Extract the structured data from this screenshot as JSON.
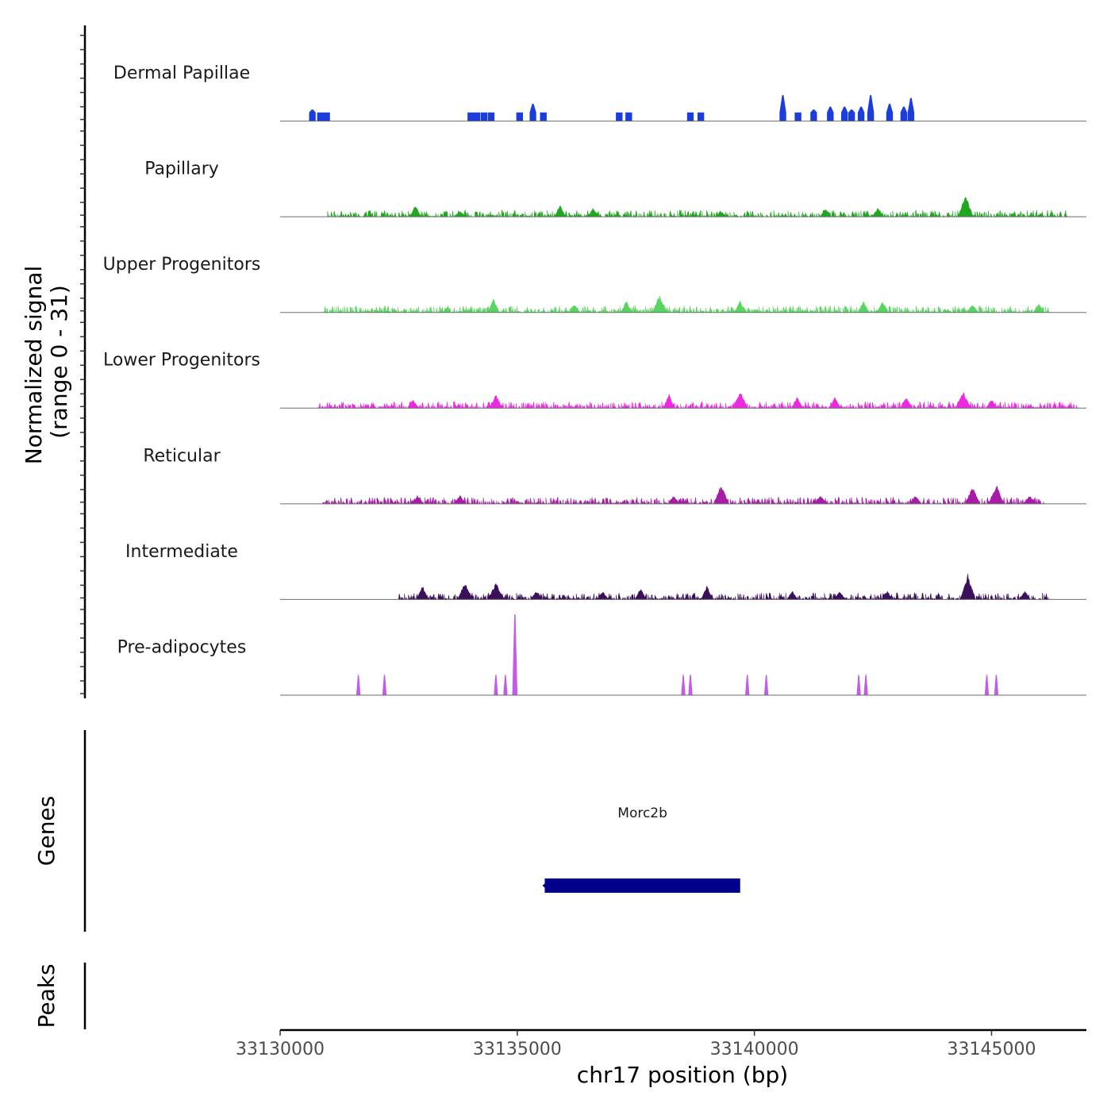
{
  "chart_data": {
    "type": "area",
    "region": {
      "chrom": "chr17",
      "start": 33130000,
      "end": 33147000
    },
    "xlabel": "chr17 position (bp)",
    "xticks": [
      {
        "value": 33130000,
        "label": "33130000"
      },
      {
        "value": 33135000,
        "label": "33135000"
      },
      {
        "value": 33140000,
        "label": "33140000"
      },
      {
        "value": 33145000,
        "label": "33145000"
      }
    ],
    "coverage_ylabel_line1": "Normalized signal",
    "coverage_ylabel_line2": "(range 0 - 31)",
    "ylim": [
      0,
      31
    ],
    "tracks": [
      {
        "name": "Dermal Papillae",
        "color": "#1a3ddb",
        "style": "sparse",
        "peaks": [
          [
            33130680,
            4
          ],
          [
            33130850,
            3
          ],
          [
            33130980,
            3
          ],
          [
            33134020,
            3
          ],
          [
            33134150,
            3
          ],
          [
            33134300,
            3
          ],
          [
            33134450,
            3
          ],
          [
            33135050,
            3
          ],
          [
            33135330,
            6
          ],
          [
            33135550,
            3
          ],
          [
            33137150,
            3
          ],
          [
            33137350,
            3
          ],
          [
            33138650,
            3
          ],
          [
            33138870,
            3
          ],
          [
            33140600,
            9
          ],
          [
            33140920,
            3
          ],
          [
            33141250,
            4
          ],
          [
            33141600,
            5
          ],
          [
            33141900,
            5
          ],
          [
            33142050,
            4
          ],
          [
            33142250,
            5
          ],
          [
            33142450,
            9
          ],
          [
            33142850,
            6
          ],
          [
            33143150,
            5
          ],
          [
            33143300,
            8
          ]
        ]
      },
      {
        "name": "Papillary",
        "color": "#1fa81f",
        "style": "dense",
        "start": 33131000,
        "end": 33146600,
        "peaks": [
          [
            33132850,
            4
          ],
          [
            33133800,
            2
          ],
          [
            33135900,
            4
          ],
          [
            33136600,
            3
          ],
          [
            33139300,
            2
          ],
          [
            33141500,
            3
          ],
          [
            33142600,
            3
          ],
          [
            33144450,
            8
          ]
        ]
      },
      {
        "name": "Upper Progenitors",
        "color": "#56d65e",
        "style": "dense",
        "start": 33130900,
        "end": 33146200,
        "peaks": [
          [
            33134500,
            5
          ],
          [
            33136200,
            3
          ],
          [
            33137300,
            4
          ],
          [
            33138000,
            6
          ],
          [
            33139700,
            4
          ],
          [
            33142300,
            4
          ],
          [
            33142700,
            4
          ],
          [
            33144600,
            3
          ],
          [
            33146000,
            3
          ]
        ]
      },
      {
        "name": "Lower Progenitors",
        "color": "#ec28e1",
        "style": "dense",
        "start": 33130800,
        "end": 33146800,
        "peaks": [
          [
            33132800,
            3
          ],
          [
            33134550,
            5
          ],
          [
            33138200,
            5
          ],
          [
            33139700,
            6
          ],
          [
            33140900,
            4
          ],
          [
            33141700,
            4
          ],
          [
            33143200,
            4
          ],
          [
            33144400,
            6
          ],
          [
            33145000,
            3
          ]
        ]
      },
      {
        "name": "Reticular",
        "color": "#a61ca6",
        "style": "dense",
        "start": 33130900,
        "end": 33146100,
        "peaks": [
          [
            33132900,
            3
          ],
          [
            33133800,
            3
          ],
          [
            33138300,
            3
          ],
          [
            33139300,
            7
          ],
          [
            33141400,
            3
          ],
          [
            33143400,
            3
          ],
          [
            33144600,
            6
          ],
          [
            33145100,
            7
          ],
          [
            33145800,
            3
          ]
        ]
      },
      {
        "name": "Intermediate",
        "color": "#3b0f59",
        "style": "dense",
        "start": 33132500,
        "end": 33146200,
        "peaks": [
          [
            33133000,
            5
          ],
          [
            33133900,
            6
          ],
          [
            33134550,
            6
          ],
          [
            33135400,
            3
          ],
          [
            33136800,
            3
          ],
          [
            33137600,
            4
          ],
          [
            33139000,
            5
          ],
          [
            33140800,
            3
          ],
          [
            33141800,
            3
          ],
          [
            33142800,
            3
          ],
          [
            33144500,
            9
          ],
          [
            33145700,
            3
          ]
        ]
      },
      {
        "name": "Pre-adipocytes",
        "color": "#c35be8",
        "style": "spikes",
        "peaks": [
          [
            33131650,
            7
          ],
          [
            33132200,
            7
          ],
          [
            33134550,
            7
          ],
          [
            33134750,
            7
          ],
          [
            33134950,
            28
          ],
          [
            33138500,
            7
          ],
          [
            33138650,
            7
          ],
          [
            33139850,
            7
          ],
          [
            33140250,
            7
          ],
          [
            33142200,
            7
          ],
          [
            33142350,
            7
          ],
          [
            33144900,
            7
          ],
          [
            33145100,
            7
          ]
        ]
      }
    ],
    "genes_track_label": "Genes",
    "genes": [
      {
        "name": "Morc2b",
        "start": 33135580,
        "end": 33139700,
        "strand": "-",
        "color": "#00008b"
      }
    ],
    "peaks_track_label": "Peaks",
    "peak_regions": []
  }
}
